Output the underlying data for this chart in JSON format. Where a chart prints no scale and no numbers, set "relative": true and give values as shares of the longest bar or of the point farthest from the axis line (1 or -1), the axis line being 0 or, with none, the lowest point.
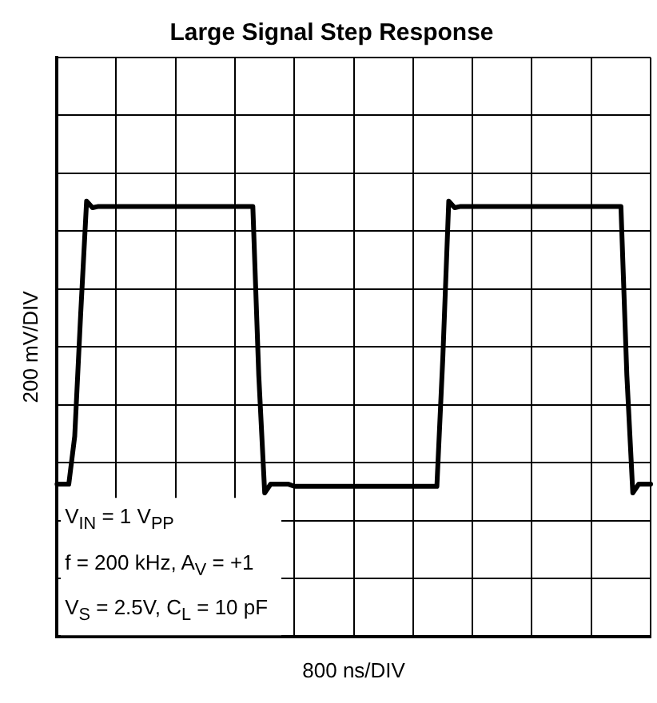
{
  "chart_data": {
    "type": "line",
    "title": "Large Signal Step Response",
    "xlabel": "800 ns/DIV",
    "ylabel": "200 mV/DIV",
    "relative": true,
    "grid": true,
    "color": "#000000",
    "categories": [
      null,
      null,
      null,
      null,
      null,
      null,
      null,
      null,
      null,
      null,
      null,
      null,
      null,
      null,
      null,
      null,
      null,
      null,
      null,
      null,
      null,
      null,
      null,
      null,
      null,
      null,
      null,
      null,
      null,
      null,
      null,
      null,
      null,
      null,
      null,
      null,
      null,
      null,
      null,
      null,
      null,
      null,
      null,
      null,
      null,
      null,
      null,
      null,
      null,
      null,
      null,
      null,
      null,
      null,
      null,
      null,
      null,
      null,
      null,
      null,
      null,
      null,
      null,
      null,
      null,
      null,
      null,
      null,
      null,
      null,
      null,
      null,
      null,
      null,
      null,
      null,
      null,
      null,
      null,
      null,
      null,
      null,
      null,
      null,
      null,
      null,
      null,
      null,
      null,
      null,
      null,
      null,
      null,
      null,
      null,
      null,
      null,
      null,
      null,
      null,
      null
    ],
    "values": [
      0.35,
      0.35,
      0.35,
      0.46,
      0.74,
      1.0,
      0.985,
      0.988,
      0.988,
      0.988,
      0.988,
      0.988,
      0.988,
      0.988,
      0.988,
      0.988,
      0.988,
      0.988,
      0.988,
      0.988,
      0.988,
      0.988,
      0.988,
      0.988,
      0.988,
      0.988,
      0.988,
      0.988,
      0.988,
      0.988,
      0.988,
      0.988,
      0.988,
      0.988,
      0.6,
      0.33,
      0.35,
      0.35,
      0.35,
      0.35,
      0.345,
      0.345,
      0.345,
      0.345,
      0.345,
      0.345,
      0.345,
      0.345,
      0.345,
      0.345,
      0.345,
      0.345,
      0.345,
      0.345,
      0.345,
      0.345,
      0.345,
      0.345,
      0.345,
      0.345,
      0.345,
      0.345,
      0.345,
      0.345,
      0.345,
      0.64,
      1.0,
      0.985,
      0.988,
      0.988,
      0.988,
      0.988,
      0.988,
      0.988,
      0.988,
      0.988,
      0.988,
      0.988,
      0.988,
      0.988,
      0.988,
      0.988,
      0.988,
      0.988,
      0.988,
      0.988,
      0.988,
      0.988,
      0.988,
      0.988,
      0.988,
      0.988,
      0.988,
      0.988,
      0.988,
      0.988,
      0.6,
      0.33,
      0.35,
      0.35,
      0.35
    ],
    "annotations": [
      "V$_{IN}$ =  1 V$_{PP}$",
      "f = 200 kHz, A$_{V}$ = +1",
      "V$_{S}$ = 2.5V, C$_{L}$ = 10 pF"
    ]
  }
}
